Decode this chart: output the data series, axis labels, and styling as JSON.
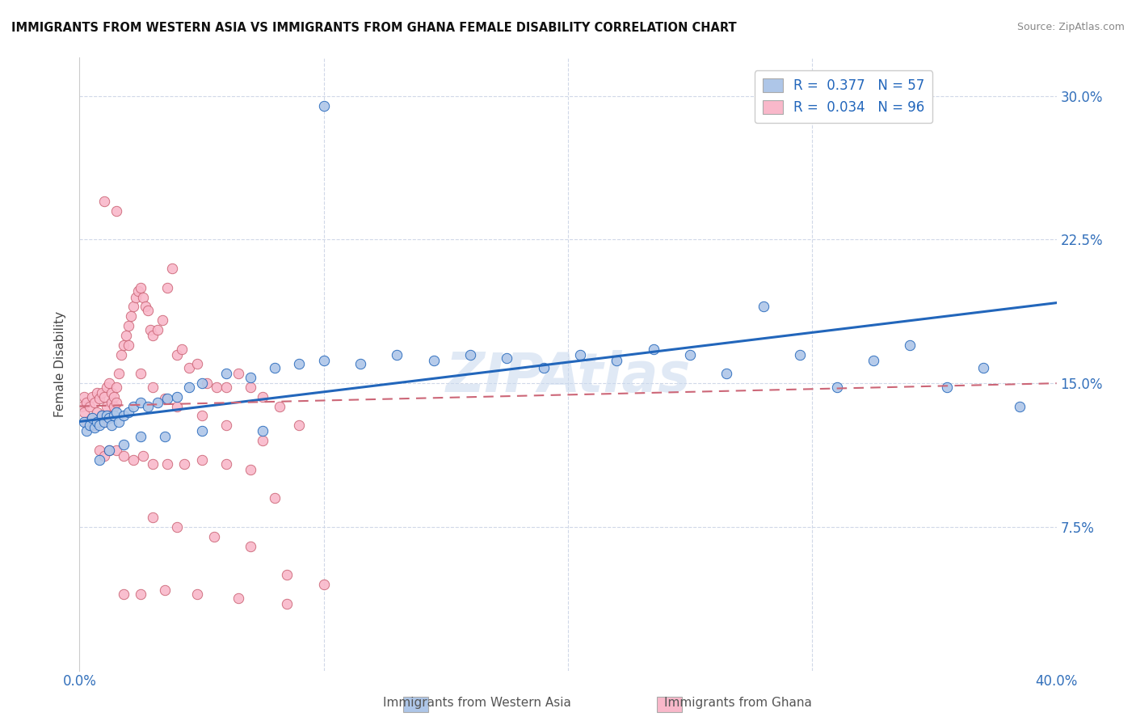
{
  "title": "IMMIGRANTS FROM WESTERN ASIA VS IMMIGRANTS FROM GHANA FEMALE DISABILITY CORRELATION CHART",
  "source": "Source: ZipAtlas.com",
  "ylabel": "Female Disability",
  "ytick_labels": [
    "7.5%",
    "15.0%",
    "22.5%",
    "30.0%"
  ],
  "ytick_values": [
    0.075,
    0.15,
    0.225,
    0.3
  ],
  "xlim": [
    0.0,
    0.4
  ],
  "ylim": [
    0.0,
    0.32
  ],
  "legend_label1": "Immigrants from Western Asia",
  "legend_label2": "Immigrants from Ghana",
  "blue_color": "#aec6e8",
  "pink_color": "#f9b8ca",
  "line_blue": "#2266bb",
  "line_pink": "#cc6677",
  "blue_x": [
    0.002,
    0.003,
    0.004,
    0.005,
    0.006,
    0.007,
    0.008,
    0.009,
    0.01,
    0.011,
    0.012,
    0.013,
    0.014,
    0.015,
    0.016,
    0.018,
    0.02,
    0.022,
    0.025,
    0.028,
    0.032,
    0.036,
    0.04,
    0.045,
    0.05,
    0.06,
    0.07,
    0.08,
    0.09,
    0.1,
    0.115,
    0.13,
    0.145,
    0.16,
    0.175,
    0.19,
    0.205,
    0.22,
    0.235,
    0.25,
    0.265,
    0.28,
    0.295,
    0.31,
    0.325,
    0.34,
    0.355,
    0.37,
    0.385,
    0.008,
    0.012,
    0.018,
    0.025,
    0.035,
    0.05,
    0.075,
    0.1
  ],
  "blue_y": [
    0.13,
    0.125,
    0.128,
    0.132,
    0.127,
    0.13,
    0.128,
    0.133,
    0.13,
    0.133,
    0.132,
    0.128,
    0.133,
    0.135,
    0.13,
    0.133,
    0.135,
    0.138,
    0.14,
    0.138,
    0.14,
    0.142,
    0.143,
    0.148,
    0.15,
    0.155,
    0.153,
    0.158,
    0.16,
    0.162,
    0.16,
    0.165,
    0.162,
    0.165,
    0.163,
    0.158,
    0.165,
    0.162,
    0.168,
    0.165,
    0.155,
    0.19,
    0.165,
    0.148,
    0.162,
    0.17,
    0.148,
    0.158,
    0.138,
    0.11,
    0.115,
    0.118,
    0.122,
    0.122,
    0.125,
    0.125,
    0.295
  ],
  "pink_x": [
    0.001,
    0.002,
    0.002,
    0.003,
    0.003,
    0.004,
    0.004,
    0.005,
    0.005,
    0.006,
    0.006,
    0.007,
    0.007,
    0.008,
    0.008,
    0.009,
    0.009,
    0.01,
    0.01,
    0.011,
    0.011,
    0.012,
    0.012,
    0.013,
    0.013,
    0.014,
    0.014,
    0.015,
    0.015,
    0.016,
    0.017,
    0.018,
    0.019,
    0.02,
    0.021,
    0.022,
    0.023,
    0.024,
    0.025,
    0.026,
    0.027,
    0.028,
    0.029,
    0.03,
    0.032,
    0.034,
    0.036,
    0.038,
    0.04,
    0.042,
    0.045,
    0.048,
    0.052,
    0.056,
    0.06,
    0.065,
    0.07,
    0.075,
    0.082,
    0.09,
    0.01,
    0.015,
    0.02,
    0.025,
    0.03,
    0.035,
    0.04,
    0.05,
    0.06,
    0.075,
    0.008,
    0.01,
    0.012,
    0.015,
    0.018,
    0.022,
    0.026,
    0.03,
    0.036,
    0.043,
    0.05,
    0.06,
    0.07,
    0.08,
    0.03,
    0.04,
    0.055,
    0.07,
    0.085,
    0.1,
    0.018,
    0.025,
    0.035,
    0.048,
    0.065,
    0.085
  ],
  "pink_y": [
    0.138,
    0.135,
    0.143,
    0.13,
    0.14,
    0.128,
    0.138,
    0.132,
    0.143,
    0.128,
    0.14,
    0.135,
    0.145,
    0.13,
    0.142,
    0.133,
    0.145,
    0.13,
    0.143,
    0.138,
    0.148,
    0.133,
    0.15,
    0.14,
    0.145,
    0.143,
    0.138,
    0.148,
    0.14,
    0.155,
    0.165,
    0.17,
    0.175,
    0.18,
    0.185,
    0.19,
    0.195,
    0.198,
    0.2,
    0.195,
    0.19,
    0.188,
    0.178,
    0.175,
    0.178,
    0.183,
    0.2,
    0.21,
    0.165,
    0.168,
    0.158,
    0.16,
    0.15,
    0.148,
    0.148,
    0.155,
    0.148,
    0.143,
    0.138,
    0.128,
    0.245,
    0.24,
    0.17,
    0.155,
    0.148,
    0.142,
    0.138,
    0.133,
    0.128,
    0.12,
    0.115,
    0.112,
    0.115,
    0.115,
    0.112,
    0.11,
    0.112,
    0.108,
    0.108,
    0.108,
    0.11,
    0.108,
    0.105,
    0.09,
    0.08,
    0.075,
    0.07,
    0.065,
    0.05,
    0.045,
    0.04,
    0.04,
    0.042,
    0.04,
    0.038,
    0.035
  ]
}
